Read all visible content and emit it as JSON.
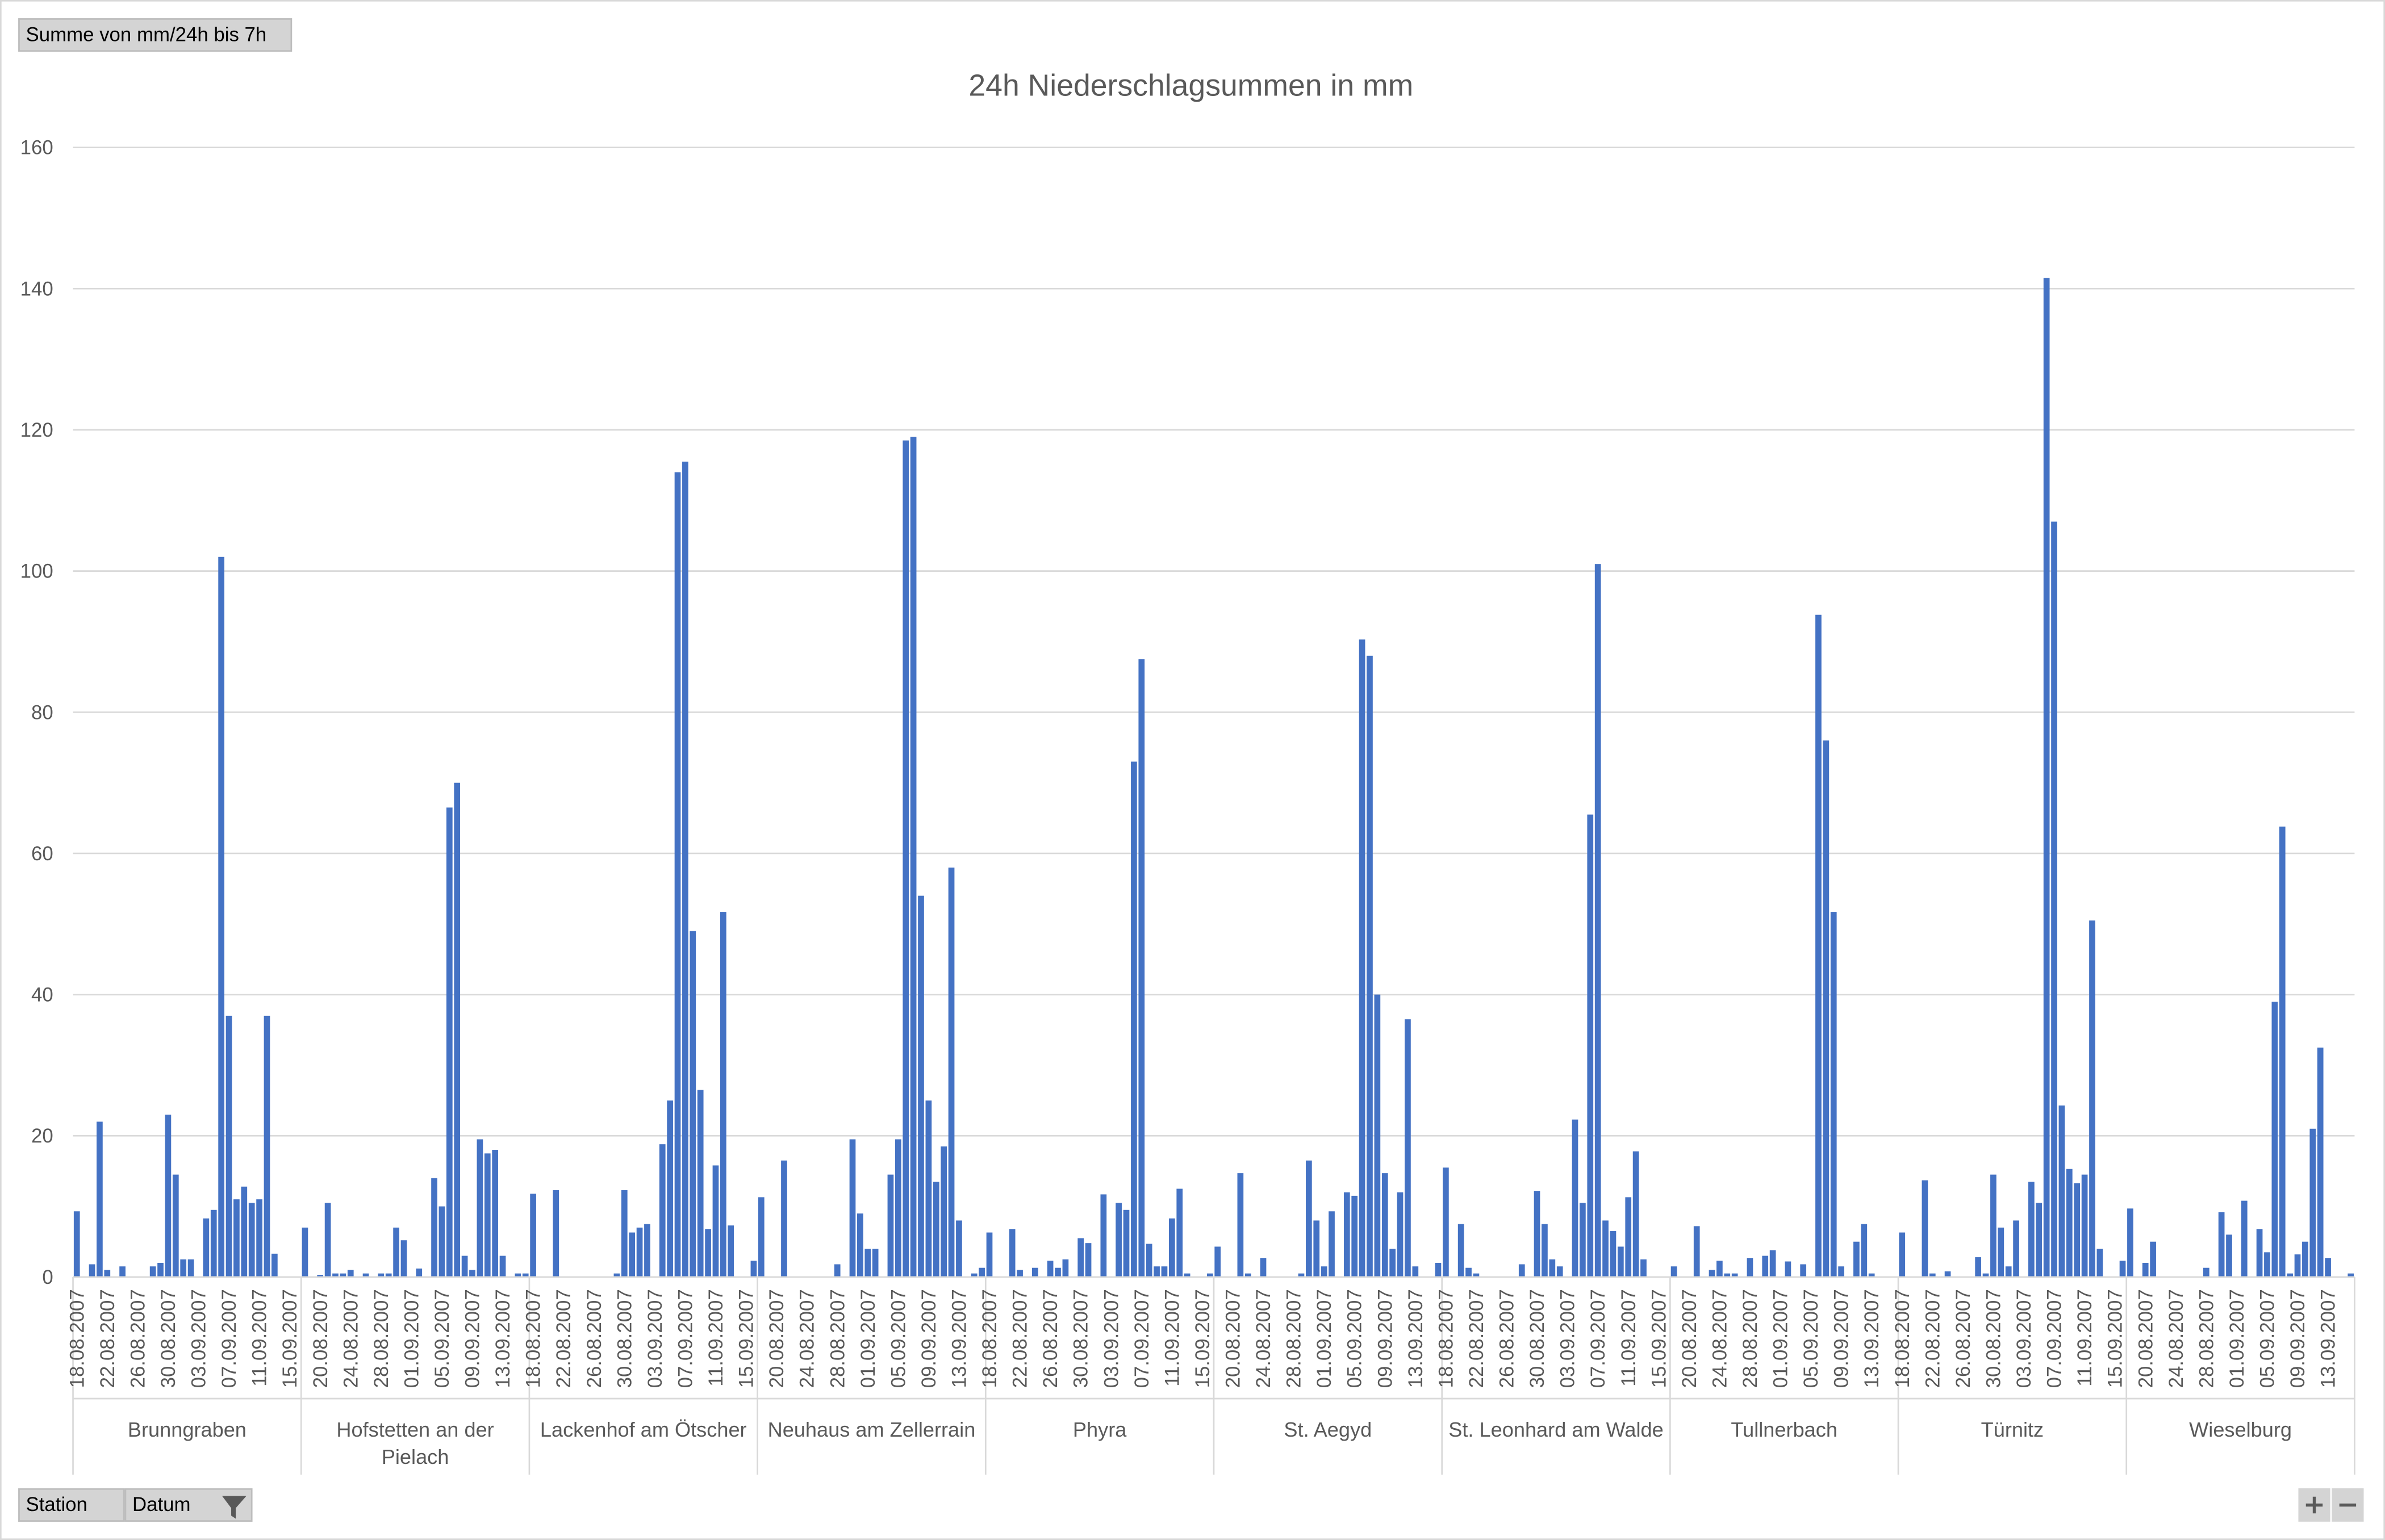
{
  "chart_data": {
    "type": "bar",
    "title": "24h Niederschlagsummen in mm",
    "value_field": "Summe von mm/24h bis 7h",
    "axis_fields": [
      "Station",
      "Datum"
    ],
    "color": "#4472c4",
    "grid": true,
    "ylim": [
      0,
      160
    ],
    "yticks": [
      0,
      20,
      40,
      60,
      80,
      100,
      120,
      140,
      160
    ],
    "groups": [
      {
        "name": "Brunngraben",
        "dates": [
          "18.08.2007",
          null,
          null,
          null,
          "22.08.2007",
          null,
          null,
          null,
          "26.08.2007",
          null,
          null,
          null,
          "30.08.2007",
          null,
          null,
          null,
          "03.09.2007",
          null,
          null,
          null,
          "07.09.2007",
          null,
          null,
          null,
          "11.09.2007",
          null,
          null,
          null,
          "15.09.2007",
          null
        ],
        "values": [
          9.3,
          0,
          1.8,
          22,
          1,
          0,
          1.5,
          0,
          0,
          0,
          1.5,
          2,
          23,
          14.5,
          2.5,
          2.5,
          0,
          8.3,
          9.5,
          102,
          37,
          11,
          12.8,
          10.5,
          11,
          37,
          3.3,
          0,
          0,
          0
        ]
      },
      {
        "name": "Hofstetten an der Pielach",
        "dates": [
          null,
          null,
          "20.08.2007",
          null,
          null,
          null,
          "24.08.2007",
          null,
          null,
          null,
          "28.08.2007",
          null,
          null,
          null,
          "01.09.2007",
          null,
          null,
          null,
          "05.09.2007",
          null,
          null,
          null,
          "09.09.2007",
          null,
          null,
          null,
          "13.09.2007",
          null,
          null,
          null
        ],
        "values": [
          7,
          0,
          0.3,
          10.5,
          0.5,
          0.5,
          1,
          0,
          0.5,
          0,
          0.5,
          0.5,
          7,
          5.2,
          0,
          1.2,
          0,
          14,
          10,
          66.5,
          70,
          3,
          1,
          19.5,
          17.5,
          18,
          3,
          0,
          0.5,
          0.5
        ]
      },
      {
        "name": "Lackenhof am Ötscher",
        "dates": [
          "18.08.2007",
          null,
          null,
          null,
          "22.08.2007",
          null,
          null,
          null,
          "26.08.2007",
          null,
          null,
          null,
          "30.08.2007",
          null,
          null,
          null,
          "03.09.2007",
          null,
          null,
          null,
          "07.09.2007",
          null,
          null,
          null,
          "11.09.2007",
          null,
          null,
          null,
          "15.09.2007",
          null
        ],
        "values": [
          11.8,
          0,
          0,
          12.3,
          0,
          0,
          0,
          0,
          0,
          0,
          0,
          0.5,
          12.3,
          6.3,
          7,
          7.5,
          0,
          18.8,
          25,
          114,
          115.5,
          49,
          26.5,
          6.8,
          15.8,
          51.7,
          7.3,
          0,
          0,
          2.3
        ]
      },
      {
        "name": "Neuhaus am Zellerrain",
        "dates": [
          null,
          null,
          "20.08.2007",
          null,
          null,
          null,
          "24.08.2007",
          null,
          null,
          null,
          "28.08.2007",
          null,
          null,
          null,
          "01.09.2007",
          null,
          null,
          null,
          "05.09.2007",
          null,
          null,
          null,
          "09.09.2007",
          null,
          null,
          null,
          "13.09.2007",
          null,
          null,
          null
        ],
        "values": [
          11.3,
          0,
          0,
          16.5,
          0,
          0,
          0,
          0,
          0,
          0,
          1.8,
          0,
          19.5,
          9,
          4,
          4,
          0,
          14.5,
          19.5,
          118.5,
          119,
          54,
          25,
          13.5,
          18.5,
          58,
          8,
          0,
          0.5,
          1.3
        ]
      },
      {
        "name": "Phyra",
        "dates": [
          "18.08.2007",
          null,
          null,
          null,
          "22.08.2007",
          null,
          null,
          null,
          "26.08.2007",
          null,
          null,
          null,
          "30.08.2007",
          null,
          null,
          null,
          "03.09.2007",
          null,
          null,
          null,
          "07.09.2007",
          null,
          null,
          null,
          "11.09.2007",
          null,
          null,
          null,
          "15.09.2007",
          null
        ],
        "values": [
          6.3,
          0,
          0,
          6.8,
          1,
          0,
          1.3,
          0,
          2.3,
          1.3,
          2.5,
          0,
          5.5,
          4.8,
          0,
          11.7,
          0,
          10.5,
          9.5,
          73,
          87.5,
          4.7,
          1.5,
          1.5,
          8.3,
          12.5,
          0.5,
          0,
          0,
          0.5
        ]
      },
      {
        "name": "St. Aegyd",
        "dates": [
          null,
          null,
          "20.08.2007",
          null,
          null,
          null,
          "24.08.2007",
          null,
          null,
          null,
          "28.08.2007",
          null,
          null,
          null,
          "01.09.2007",
          null,
          null,
          null,
          "05.09.2007",
          null,
          null,
          null,
          "09.09.2007",
          null,
          null,
          null,
          "13.09.2007",
          null,
          null,
          null
        ],
        "values": [
          4.3,
          0,
          0,
          14.7,
          0.5,
          0,
          2.7,
          0,
          0,
          0,
          0,
          0.5,
          16.5,
          8,
          1.5,
          9.3,
          0,
          12,
          11.5,
          90.3,
          88,
          40,
          14.7,
          4,
          12,
          36.5,
          1.5,
          0,
          0,
          2
        ]
      },
      {
        "name": "St. Leonhard am Walde",
        "dates": [
          "18.08.2007",
          null,
          null,
          null,
          "22.08.2007",
          null,
          null,
          null,
          "26.08.2007",
          null,
          null,
          null,
          "30.08.2007",
          null,
          null,
          null,
          "03.09.2007",
          null,
          null,
          null,
          "07.09.2007",
          null,
          null,
          null,
          "11.09.2007",
          null,
          null,
          null,
          "15.09.2007",
          null
        ],
        "values": [
          15.5,
          0,
          7.5,
          1.3,
          0.5,
          0,
          0,
          0,
          0,
          0,
          1.8,
          0,
          12.2,
          7.5,
          2.5,
          1.5,
          0,
          22.3,
          10.5,
          65.5,
          101,
          8,
          6.5,
          4.3,
          11.3,
          17.8,
          2.5,
          0,
          0,
          0
        ]
      },
      {
        "name": "Tullnerbach",
        "dates": [
          null,
          null,
          "20.08.2007",
          null,
          null,
          null,
          "24.08.2007",
          null,
          null,
          null,
          "28.08.2007",
          null,
          null,
          null,
          "01.09.2007",
          null,
          null,
          null,
          "05.09.2007",
          null,
          null,
          null,
          "09.09.2007",
          null,
          null,
          null,
          "13.09.2007",
          null,
          null,
          null
        ],
        "values": [
          1.5,
          0,
          0,
          7.2,
          0,
          1,
          2.3,
          0.5,
          0.5,
          0,
          2.7,
          0,
          3,
          3.8,
          0,
          2.2,
          0,
          1.8,
          0,
          93.8,
          76,
          51.7,
          1.5,
          0,
          5,
          7.5,
          0.5,
          0,
          0,
          0
        ]
      },
      {
        "name": "Türnitz",
        "dates": [
          "18.08.2007",
          null,
          null,
          null,
          "22.08.2007",
          null,
          null,
          null,
          "26.08.2007",
          null,
          null,
          null,
          "30.08.2007",
          null,
          null,
          null,
          "03.09.2007",
          null,
          null,
          null,
          "07.09.2007",
          null,
          null,
          null,
          "11.09.2007",
          null,
          null,
          null,
          "15.09.2007",
          null
        ],
        "values": [
          6.3,
          0,
          0,
          13.7,
          0.5,
          0,
          0.8,
          0,
          0,
          0,
          2.8,
          0.5,
          14.5,
          7,
          1.5,
          8,
          0,
          13.5,
          10.5,
          141.5,
          107,
          24.3,
          15.3,
          13.3,
          14.5,
          50.5,
          4,
          0,
          0,
          2.3
        ]
      },
      {
        "name": "Wieselburg",
        "dates": [
          null,
          null,
          "20.08.2007",
          null,
          null,
          null,
          "24.08.2007",
          null,
          null,
          null,
          "28.08.2007",
          null,
          null,
          null,
          "01.09.2007",
          null,
          null,
          null,
          "05.09.2007",
          null,
          null,
          null,
          "09.09.2007",
          null,
          null,
          null,
          "13.09.2007",
          null,
          null,
          null
        ],
        "values": [
          9.7,
          0,
          2,
          5,
          0,
          0,
          0,
          0,
          0,
          0,
          1.3,
          0,
          9.2,
          6,
          0,
          10.8,
          0,
          6.8,
          3.5,
          39,
          63.8,
          0.5,
          3.2,
          5,
          21,
          32.5,
          2.7,
          0,
          0,
          0.5
        ]
      }
    ]
  }
}
